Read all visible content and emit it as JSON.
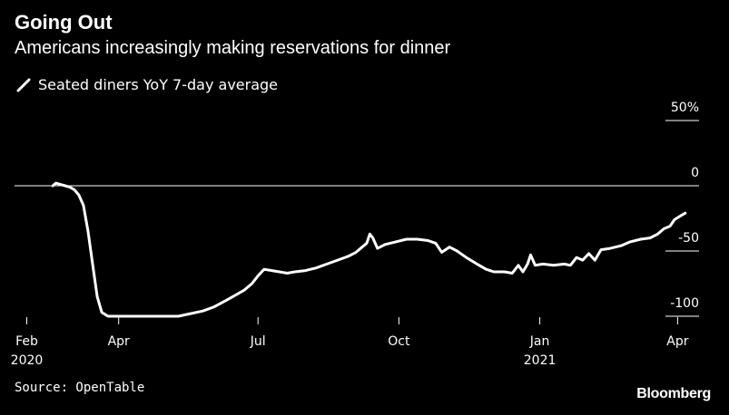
{
  "title": "Going Out",
  "subtitle": "Americans increasingly making reservations for dinner",
  "source": "Source: OpenTable",
  "brand": "Bloomberg",
  "chart_data": {
    "type": "line",
    "series": [
      {
        "name": "Seated diners YoY 7-day average",
        "color": "#ffffff",
        "points": [
          [
            "2020-02-18",
            0
          ],
          [
            "2020-02-20",
            2
          ],
          [
            "2020-02-23",
            1
          ],
          [
            "2020-02-26",
            0
          ],
          [
            "2020-02-29",
            -1
          ],
          [
            "2020-03-03",
            -3
          ],
          [
            "2020-03-06",
            -7
          ],
          [
            "2020-03-09",
            -15
          ],
          [
            "2020-03-12",
            -35
          ],
          [
            "2020-03-15",
            -60
          ],
          [
            "2020-03-18",
            -85
          ],
          [
            "2020-03-21",
            -97
          ],
          [
            "2020-03-25",
            -100
          ],
          [
            "2020-04-01",
            -100
          ],
          [
            "2020-04-15",
            -100
          ],
          [
            "2020-05-01",
            -100
          ],
          [
            "2020-05-10",
            -100
          ],
          [
            "2020-05-18",
            -98
          ],
          [
            "2020-05-26",
            -96
          ],
          [
            "2020-06-02",
            -93
          ],
          [
            "2020-06-10",
            -88
          ],
          [
            "2020-06-16",
            -84
          ],
          [
            "2020-06-22",
            -80
          ],
          [
            "2020-06-27",
            -75
          ],
          [
            "2020-07-01",
            -69
          ],
          [
            "2020-07-05",
            -64
          ],
          [
            "2020-07-10",
            -65
          ],
          [
            "2020-07-15",
            -66
          ],
          [
            "2020-07-20",
            -67
          ],
          [
            "2020-07-25",
            -66
          ],
          [
            "2020-08-01",
            -65
          ],
          [
            "2020-08-08",
            -63
          ],
          [
            "2020-08-15",
            -60
          ],
          [
            "2020-08-22",
            -57
          ],
          [
            "2020-08-29",
            -54
          ],
          [
            "2020-09-03",
            -51
          ],
          [
            "2020-09-07",
            -47
          ],
          [
            "2020-09-10",
            -44
          ],
          [
            "2020-09-12",
            -37
          ],
          [
            "2020-09-14",
            -40
          ],
          [
            "2020-09-17",
            -48
          ],
          [
            "2020-09-22",
            -45
          ],
          [
            "2020-09-29",
            -43
          ],
          [
            "2020-10-06",
            -41
          ],
          [
            "2020-10-13",
            -41
          ],
          [
            "2020-10-20",
            -42
          ],
          [
            "2020-10-25",
            -44
          ],
          [
            "2020-10-29",
            -51
          ],
          [
            "2020-11-03",
            -47
          ],
          [
            "2020-11-08",
            -50
          ],
          [
            "2020-11-14",
            -55
          ],
          [
            "2020-11-21",
            -60
          ],
          [
            "2020-11-27",
            -64
          ],
          [
            "2020-12-02",
            -66
          ],
          [
            "2020-12-09",
            -66
          ],
          [
            "2020-12-14",
            -67
          ],
          [
            "2020-12-18",
            -61
          ],
          [
            "2020-12-21",
            -66
          ],
          [
            "2020-12-24",
            -60
          ],
          [
            "2020-12-26",
            -53
          ],
          [
            "2020-12-29",
            -61
          ],
          [
            "2021-01-03",
            -60
          ],
          [
            "2021-01-10",
            -61
          ],
          [
            "2021-01-17",
            -60
          ],
          [
            "2021-01-21",
            -61
          ],
          [
            "2021-01-25",
            -55
          ],
          [
            "2021-01-29",
            -57
          ],
          [
            "2021-02-02",
            -52
          ],
          [
            "2021-02-06",
            -57
          ],
          [
            "2021-02-10",
            -49
          ],
          [
            "2021-02-16",
            -48
          ],
          [
            "2021-02-23",
            -46
          ],
          [
            "2021-03-01",
            -43
          ],
          [
            "2021-03-08",
            -41
          ],
          [
            "2021-03-14",
            -40
          ],
          [
            "2021-03-19",
            -37
          ],
          [
            "2021-03-23",
            -33
          ],
          [
            "2021-03-27",
            -31
          ],
          [
            "2021-03-30",
            -26
          ],
          [
            "2021-04-03",
            -23
          ],
          [
            "2021-04-06",
            -21
          ]
        ]
      }
    ],
    "x_ticks": [
      {
        "date": "2020-02-01",
        "label": "Feb",
        "year": "2020"
      },
      {
        "date": "2020-04-01",
        "label": "Apr",
        "year": ""
      },
      {
        "date": "2020-07-01",
        "label": "Jul",
        "year": ""
      },
      {
        "date": "2020-10-01",
        "label": "Oct",
        "year": ""
      },
      {
        "date": "2021-01-01",
        "label": "Jan",
        "year": "2021"
      },
      {
        "date": "2021-04-01",
        "label": "Apr",
        "year": ""
      }
    ],
    "y_ticks": [
      {
        "value": 50,
        "label": "50%"
      },
      {
        "value": 0,
        "label": "0"
      },
      {
        "value": -50,
        "label": "-50"
      },
      {
        "value": -100,
        "label": "-100"
      }
    ],
    "xlim": [
      "2020-01-24",
      "2021-04-15"
    ],
    "ylim": [
      -100,
      50
    ],
    "grid": false,
    "legend_position": "top-left",
    "zero_line": true,
    "colors": {
      "background": "#000000",
      "line": "#ffffff",
      "text": "#ffffff"
    }
  }
}
